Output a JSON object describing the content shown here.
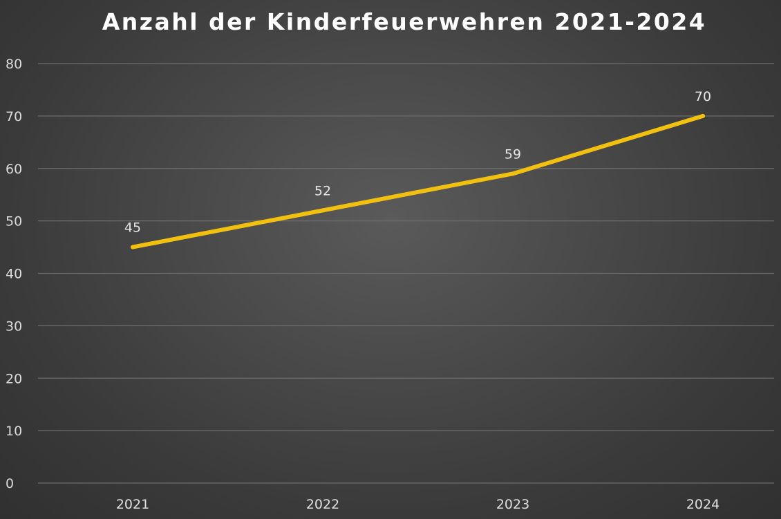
{
  "chart_data": {
    "type": "line",
    "title": "Anzahl der Kinderfeuerwehren 2021-2024",
    "categories": [
      "2021",
      "2022",
      "2023",
      "2024"
    ],
    "series": [
      {
        "values": [
          45,
          52,
          59,
          70
        ],
        "color": "#f2c110"
      }
    ],
    "data_labels": [
      "45",
      "52",
      "59",
      "70"
    ],
    "ylim": [
      0,
      80
    ],
    "yticks": [
      0,
      10,
      20,
      30,
      40,
      50,
      60,
      70,
      80
    ],
    "xlabel": "",
    "ylabel": "",
    "grid": true,
    "legend": "none"
  }
}
